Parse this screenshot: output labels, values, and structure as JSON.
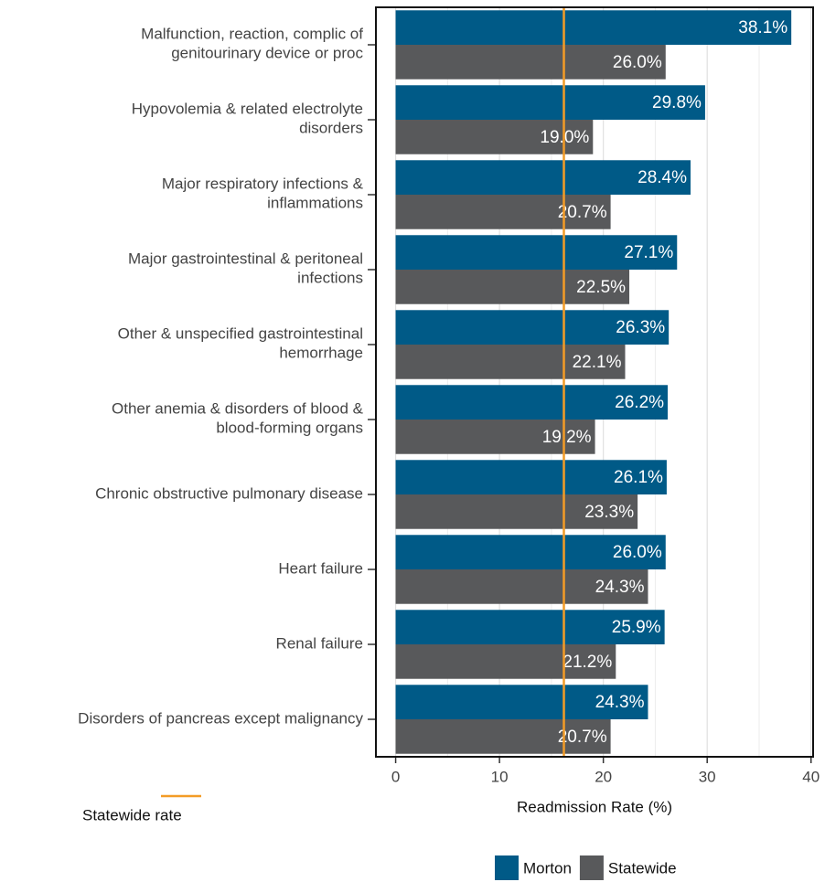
{
  "chart_data": {
    "type": "bar",
    "orientation": "horizontal",
    "xlabel": "Readmission Rate (%)",
    "categories": [
      "Malfunction, reaction, complic of\ngenitourinary device or proc",
      "Hypovolemia & related electrolyte\ndisorders",
      "Major respiratory infections &\ninflammations",
      "Major gastrointestinal & peritoneal\ninfections",
      "Other & unspecified gastrointestinal\nhemorrhage",
      "Other anemia & disorders of blood &\nblood-forming organs",
      "Chronic obstructive pulmonary disease",
      "Heart failure",
      "Renal failure",
      "Disorders of pancreas except malignancy"
    ],
    "series": [
      {
        "name": "Morton",
        "color": "#005a87",
        "values": [
          38.1,
          29.8,
          28.4,
          27.1,
          26.3,
          26.2,
          26.1,
          26.0,
          25.9,
          24.3
        ],
        "value_labels": [
          "38.1%",
          "29.8%",
          "28.4%",
          "27.1%",
          "26.3%",
          "26.2%",
          "26.1%",
          "26.0%",
          "25.9%",
          "24.3%"
        ]
      },
      {
        "name": "Statewide",
        "color": "#58595b",
        "values": [
          26.0,
          19.0,
          20.7,
          22.5,
          22.1,
          19.2,
          23.3,
          24.3,
          21.2,
          20.7
        ],
        "value_labels": [
          "26.0%",
          "19.0%",
          "20.7%",
          "22.5%",
          "22.1%",
          "19.2%",
          "23.3%",
          "24.3%",
          "21.2%",
          "20.7%"
        ]
      }
    ],
    "reference_line": {
      "name": "Statewide rate",
      "value": 16.2,
      "color": "#f39c27"
    },
    "xlim": [
      -1.9,
      40.2
    ],
    "xticks": [
      0,
      10,
      20,
      30,
      40
    ],
    "xminorticks": [
      5,
      15,
      25,
      35
    ],
    "grid": true
  }
}
